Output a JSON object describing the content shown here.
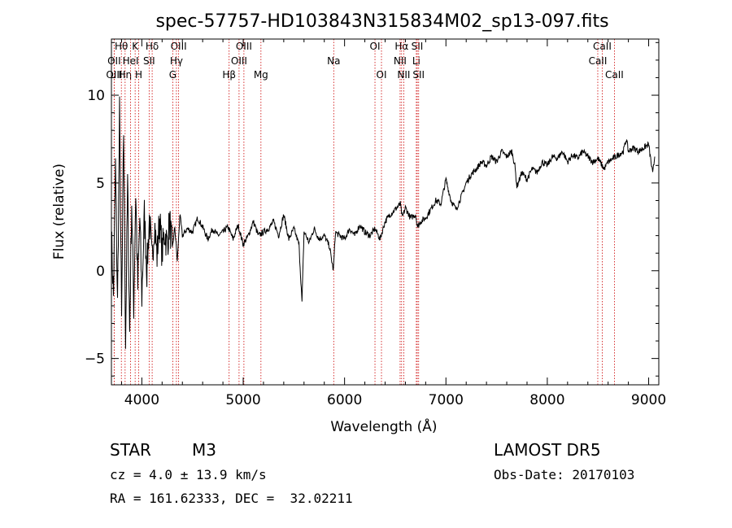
{
  "chart_data": {
    "type": "line",
    "title": "spec-57757-HD103843N315834M02_sp13-097.fits",
    "xlabel": "Wavelength (Å)",
    "ylabel": "Flux (relative)",
    "xlim": [
      3700,
      9100
    ],
    "ylim": [
      -6.5,
      13.2
    ],
    "x_ticks": [
      4000,
      5000,
      6000,
      7000,
      8000,
      9000
    ],
    "y_ticks": [
      -5,
      0,
      5,
      10
    ],
    "grid": false,
    "series": [
      {
        "x": [
          3700,
          3720,
          3740,
          3760,
          3780,
          3800,
          3820,
          3840,
          3860,
          3880,
          3900,
          3920,
          3940,
          3960,
          3980,
          4000,
          4025,
          4050,
          4075,
          4100,
          4125,
          4150,
          4175,
          4200,
          4225,
          4250,
          4275,
          4300,
          4325,
          4350,
          4375,
          4400,
          4450,
          4500,
          4550,
          4600,
          4650,
          4700,
          4750,
          4800,
          4850,
          4900,
          4950,
          5000,
          5050,
          5100,
          5150,
          5200,
          5250,
          5300,
          5350,
          5400,
          5450,
          5500,
          5550,
          5580,
          5600,
          5620,
          5650,
          5700,
          5750,
          5800,
          5850,
          5890,
          5910,
          5950,
          6000,
          6050,
          6100,
          6150,
          6200,
          6250,
          6300,
          6350,
          6400,
          6450,
          6500,
          6550,
          6570,
          6600,
          6650,
          6700,
          6720,
          6750,
          6800,
          6850,
          6900,
          6950,
          7000,
          7050,
          7100,
          7150,
          7200,
          7250,
          7300,
          7350,
          7400,
          7450,
          7500,
          7550,
          7600,
          7650,
          7680,
          7700,
          7750,
          7800,
          7850,
          7900,
          7950,
          8000,
          8050,
          8100,
          8150,
          8200,
          8250,
          8300,
          8350,
          8400,
          8450,
          8500,
          8540,
          8560,
          8600,
          8650,
          8700,
          8750,
          8780,
          8800,
          8850,
          8900,
          8950,
          9000,
          9040,
          9060
        ],
        "values": [
          2.0,
          -1.5,
          6.0,
          -2.0,
          9.0,
          -3.0,
          8.0,
          -4.0,
          5.0,
          -3.5,
          4.0,
          -2.0,
          4.5,
          -1.0,
          3.0,
          -1.5,
          3.2,
          0.0,
          3.0,
          0.5,
          2.8,
          0.8,
          3.0,
          1.0,
          2.2,
          1.5,
          2.8,
          1.2,
          2.5,
          0.5,
          3.2,
          2.0,
          2.4,
          2.2,
          3.0,
          2.5,
          1.8,
          2.4,
          2.0,
          2.2,
          2.5,
          1.8,
          2.6,
          1.5,
          2.0,
          2.8,
          2.0,
          2.2,
          2.4,
          2.8,
          2.0,
          3.2,
          1.8,
          2.4,
          1.5,
          -1.8,
          2.2,
          2.0,
          1.6,
          2.4,
          1.8,
          2.0,
          1.4,
          0.0,
          2.2,
          2.0,
          1.8,
          2.4,
          2.0,
          2.6,
          2.2,
          2.0,
          2.4,
          1.8,
          2.8,
          3.2,
          3.5,
          3.8,
          3.0,
          3.6,
          3.0,
          3.2,
          2.5,
          2.8,
          3.0,
          3.5,
          4.0,
          3.8,
          5.2,
          4.0,
          3.5,
          4.2,
          5.0,
          5.5,
          5.8,
          6.2,
          6.0,
          6.5,
          6.2,
          6.8,
          6.5,
          6.8,
          6.0,
          4.8,
          5.6,
          5.2,
          5.8,
          5.6,
          6.2,
          6.0,
          6.5,
          6.4,
          6.8,
          6.2,
          6.6,
          6.4,
          6.8,
          6.5,
          6.2,
          6.4,
          6.0,
          5.8,
          6.2,
          6.4,
          6.6,
          6.8,
          7.5,
          6.8,
          7.0,
          6.8,
          7.0,
          7.2,
          5.5,
          6.5
        ]
      }
    ],
    "spectral_lines": [
      {
        "label": "Hθ",
        "wavelength": 3798,
        "row": 0
      },
      {
        "label": "OII",
        "wavelength": 3727,
        "row": 1
      },
      {
        "label": "OIII",
        "wavelength": 3727,
        "row": 2
      },
      {
        "label": "Hη",
        "wavelength": 3835,
        "row": 2
      },
      {
        "label": "K",
        "wavelength": 3934,
        "row": 0
      },
      {
        "label": "HeI",
        "wavelength": 3889,
        "row": 1
      },
      {
        "label": "H",
        "wavelength": 3969,
        "row": 2
      },
      {
        "label": "Hδ",
        "wavelength": 4102,
        "row": 0
      },
      {
        "label": "SII",
        "wavelength": 4072,
        "row": 1
      },
      {
        "label": "OIII",
        "wavelength": 4363,
        "row": 0
      },
      {
        "label": "Hγ",
        "wavelength": 4341,
        "row": 1
      },
      {
        "label": "G",
        "wavelength": 4305,
        "row": 2
      },
      {
        "label": "Hβ",
        "wavelength": 4861,
        "row": 2
      },
      {
        "label": "OIII",
        "wavelength": 5007,
        "row": 0
      },
      {
        "label": "OIII",
        "wavelength": 4959,
        "row": 1
      },
      {
        "label": "Mg",
        "wavelength": 5175,
        "row": 2
      },
      {
        "label": "Na",
        "wavelength": 5893,
        "row": 1
      },
      {
        "label": "OI",
        "wavelength": 6300,
        "row": 0
      },
      {
        "label": "OI",
        "wavelength": 6364,
        "row": 2
      },
      {
        "label": "Hα",
        "wavelength": 6563,
        "row": 0
      },
      {
        "label": "NII",
        "wavelength": 6548,
        "row": 1
      },
      {
        "label": "NII",
        "wavelength": 6584,
        "row": 2
      },
      {
        "label": "SII",
        "wavelength": 6717,
        "row": 0
      },
      {
        "label": "Li",
        "wavelength": 6708,
        "row": 1
      },
      {
        "label": "SII",
        "wavelength": 6731,
        "row": 2
      },
      {
        "label": "CaII",
        "wavelength": 8542,
        "row": 0
      },
      {
        "label": "CaII",
        "wavelength": 8498,
        "row": 1
      },
      {
        "label": "CaII",
        "wavelength": 8662,
        "row": 2
      }
    ]
  },
  "info": {
    "class_label": "STAR",
    "subclass_label": "M3",
    "redshift": "cz = 4.0 ± 13.9 km/s",
    "coords": "RA = 161.62333, DEC =  32.02211",
    "survey": "LAMOST DR5",
    "obs_date": "Obs-Date: 20170103"
  }
}
